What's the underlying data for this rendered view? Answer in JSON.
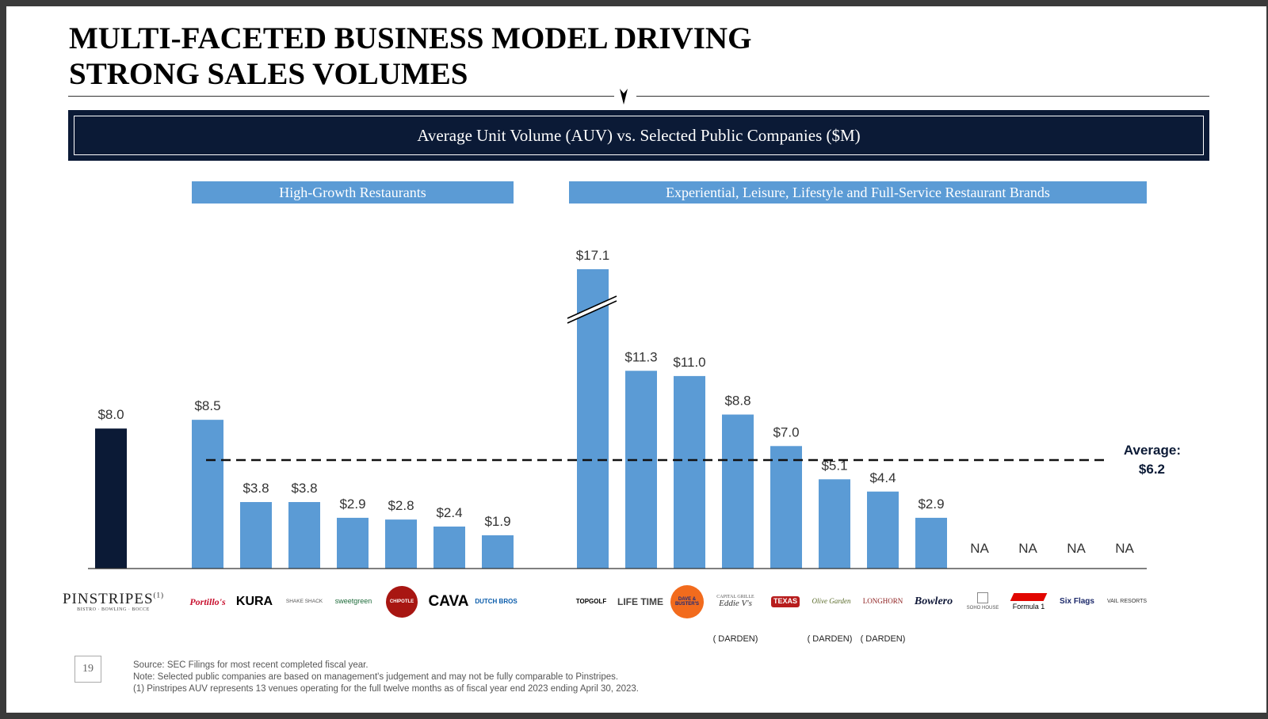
{
  "title": {
    "line1": "MULTI-FACETED BUSINESS MODEL DRIVING",
    "line2": "STRONG SALES VOLUMES"
  },
  "banner": "Average Unit Volume (AUV) vs. Selected Public Companies ($M)",
  "groups": {
    "high_growth": "High-Growth Restaurants",
    "experiential": "Experiential, Leisure, Lifestyle and Full-Service Restaurant Brands"
  },
  "average_label": {
    "line1": "Average:",
    "line2": "$6.2"
  },
  "colors": {
    "navy": "#0b1a36",
    "bar": "#5b9bd5",
    "banner": "#0b1a36"
  },
  "chart_data": {
    "type": "bar",
    "average": 6.2,
    "axis_break": true,
    "categories": [
      "PINSTRIPES",
      "Portillo's",
      "KURA",
      "SHAKE SHACK",
      "sweetgreen",
      "CHIPOTLE",
      "CAVA",
      "DUTCH BROS",
      "TOPGOLF",
      "LIFE TIME",
      "DAVE & BUSTER'S",
      "THE CAPITAL GRILLE / EDDIE V'S",
      "TEXAS ROADHOUSE",
      "Olive Garden",
      "LONGHORN STEAKHOUSE",
      "Bowlero",
      "SOHO HOUSE",
      "Formula 1",
      "Six Flags",
      "VAIL RESORTS"
    ],
    "values": [
      8.0,
      8.5,
      3.8,
      3.8,
      2.9,
      2.8,
      2.4,
      1.9,
      17.1,
      11.3,
      11.0,
      8.8,
      7.0,
      5.1,
      4.4,
      2.9,
      null,
      null,
      null,
      null
    ],
    "labels": [
      "$8.0",
      "$8.5",
      "$3.8",
      "$3.8",
      "$2.9",
      "$2.8",
      "$2.4",
      "$1.9",
      "$17.1",
      "$11.3",
      "$11.0",
      "$8.8",
      "$7.0",
      "$5.1",
      "$4.4",
      "$2.9",
      "NA",
      "NA",
      "NA",
      "NA"
    ],
    "highlight_index": 0
  },
  "logos": {
    "pinstripes": {
      "name": "PINSTRIPES",
      "sup": "(1)",
      "sub": "BISTRO · BOWLING · BOCCE"
    },
    "portillos": "Portillo's",
    "kura": "KURA",
    "shakeshack": "SHAKE SHACK",
    "sweetgreen": "sweetgreen",
    "chipotle": "CHIPOTLE",
    "cava": "CAVA",
    "dutchbros": "DUTCH BROS",
    "topgolf": "TOPGOLF",
    "lifetime": "LIFE TIME",
    "davebusters": "DAVE & BUSTER'S",
    "capitalgrille": "CAPITAL GRILLE",
    "eddievs": "Eddie V's",
    "texas": "TEXAS",
    "olivegarden": "Olive Garden",
    "longhorn": "LONGHORN",
    "bowlero": "Bowlero",
    "sohohouse": "SOHO HOUSE",
    "formula1": "Formula 1",
    "sixflags": "Six Flags",
    "vail": "VAIL RESORTS"
  },
  "darden_tag": "( DARDEN)",
  "page_number": "19",
  "footnotes": [
    "Source: SEC Filings for most recent completed fiscal year.",
    "Note: Selected public companies are based on management's judgement and may not be fully comparable to Pinstripes.",
    "(1) Pinstripes AUV represents 13 venues operating for the full twelve months as of fiscal year end 2023 ending April 30, 2023."
  ]
}
